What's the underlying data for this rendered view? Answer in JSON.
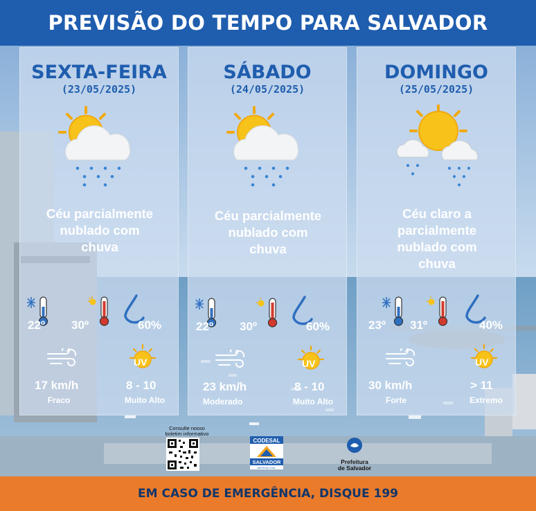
{
  "header": {
    "title": "PREVISÃO DO TEMPO PARA SALVADOR"
  },
  "days": [
    {
      "name": "SEXTA-FEIRA",
      "date": "(23/05/2025)",
      "icon": "sun-cloud-rain-icon",
      "description": [
        "Céu parcialmente",
        "nublado com",
        "chuva"
      ],
      "temp_min": "22º",
      "temp_max": "30º",
      "humidity": "60%",
      "wind_speed": "17 km/h",
      "wind_label": "Fraco",
      "uv": "8 - 10",
      "uv_label": "Muito Alto",
      "uv_letters": "UV"
    },
    {
      "name": "SÁBADO",
      "date": "(24/05/2025)",
      "icon": "sun-cloud-rain-icon",
      "description": [
        "Céu parcialmente",
        "nublado com",
        "chuva"
      ],
      "temp_min": "22º",
      "temp_max": "30º",
      "humidity": "60%",
      "wind_speed": "23 km/h",
      "wind_label": "Moderado",
      "uv": "8 - 10",
      "uv_label": "Muito Alto",
      "uv_letters": "UV"
    },
    {
      "name": "DOMINGO",
      "date": "(25/05/2025)",
      "icon": "sun-clouds-rain-icon",
      "description": [
        "Céu claro a",
        "parcialmente",
        "nublado com",
        "chuva"
      ],
      "temp_min": "23º",
      "temp_max": "31º",
      "humidity": "40%",
      "wind_speed": "30 km/h",
      "wind_label": "Forte",
      "uv": "> 11",
      "uv_label": "Extremo",
      "uv_letters": "UV"
    }
  ],
  "logos": {
    "qr_caption": [
      "Consulte nosso",
      "boletim informativo"
    ],
    "codesal_top": "CODESAL",
    "codesal_bottom": "SALVADOR",
    "codesal_sub": "DEFESA CIVIL",
    "prefeitura": [
      "Prefeitura",
      "de Salvador"
    ]
  },
  "footer": {
    "emergency": "EM CASO DE EMERGÊNCIA, DISQUE 199"
  },
  "colors": {
    "header": "#1f5dae",
    "footer": "#ea7b2a",
    "title_text": "#1f5dae"
  }
}
